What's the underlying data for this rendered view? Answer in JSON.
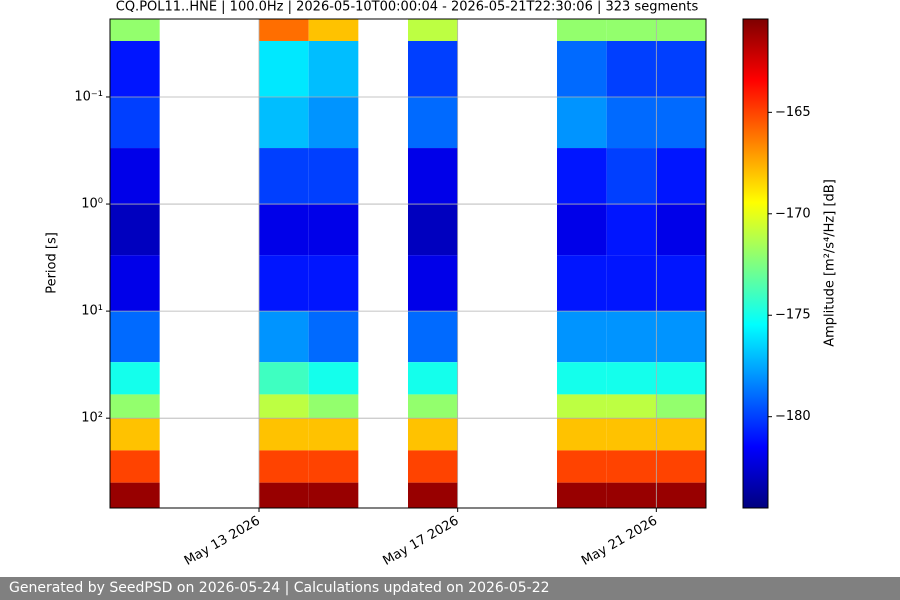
{
  "chart_data": {
    "type": "spectrogram",
    "title": "CQ.POL11..HNE | 100.0Hz | 2026-05-10T00:00:04 - 2026-05-21T22:30:06 | 323 segments",
    "y_label": "Period [s]",
    "colorbar_label": "Amplitude [m²/s⁴/Hz] [dB]",
    "x_edges": [
      "2026-05-10",
      "2026-05-11",
      "2026-05-12",
      "2026-05-13",
      "2026-05-14",
      "2026-05-15",
      "2026-05-16",
      "2026-05-17",
      "2026-05-18",
      "2026-05-19",
      "2026-05-20",
      "2026-05-21",
      "2026-05-22"
    ],
    "y_edges": [
      0.0187,
      0.03,
      0.1,
      0.3,
      1,
      3,
      10,
      30,
      60,
      100,
      200,
      400,
      690
    ],
    "z": [
      [
        -172,
        null,
        null,
        -166,
        -168,
        null,
        -171,
        null,
        null,
        -172,
        -172,
        -172
      ],
      [
        -181,
        null,
        null,
        -176,
        -177,
        null,
        -180,
        null,
        null,
        -179,
        -180,
        -180
      ],
      [
        -180,
        null,
        null,
        -177,
        -178,
        null,
        -179,
        null,
        null,
        -178,
        -179,
        -179
      ],
      [
        -182,
        null,
        null,
        -180,
        -180,
        null,
        -182,
        null,
        null,
        -181,
        -180,
        -181
      ],
      [
        -183,
        null,
        null,
        -182,
        -182,
        null,
        -183,
        null,
        null,
        -182,
        -181,
        -182
      ],
      [
        -182,
        null,
        null,
        -181,
        -181,
        null,
        -182,
        null,
        null,
        -181,
        -181,
        -181
      ],
      [
        -179,
        null,
        null,
        -178,
        -179,
        null,
        -179,
        null,
        null,
        -178,
        -178,
        -178
      ],
      [
        -175,
        null,
        null,
        -174,
        -175,
        null,
        -175,
        null,
        null,
        -175,
        -175,
        -175
      ],
      [
        -172,
        null,
        null,
        -171,
        -172,
        null,
        -172,
        null,
        null,
        -171,
        -171,
        -172
      ],
      [
        -168,
        null,
        null,
        -168,
        -168,
        null,
        -168,
        null,
        null,
        -168,
        -168,
        -168
      ],
      [
        -165,
        null,
        null,
        -165,
        -165,
        null,
        -165,
        null,
        null,
        -165,
        -165,
        -165
      ],
      [
        -161,
        null,
        null,
        -161,
        -161,
        null,
        -161,
        null,
        null,
        -161,
        -161,
        -161
      ]
    ],
    "xlim": [
      "2026-05-10",
      "2026-05-22"
    ],
    "xticks": [
      {
        "value": "2026-05-13",
        "label": "May 13 2026"
      },
      {
        "value": "2026-05-17",
        "label": "May 17 2026"
      },
      {
        "value": "2026-05-21",
        "label": "May 21 2026"
      }
    ],
    "ylim": [
      0.0187,
      690
    ],
    "y_log": true,
    "y_inverted": true,
    "yticks": [
      {
        "value": 0.1,
        "label": "10⁻¹"
      },
      {
        "value": 1,
        "label": "10⁰"
      },
      {
        "value": 10,
        "label": "10¹"
      },
      {
        "value": 100,
        "label": "10²"
      }
    ],
    "clim": [
      -184.5,
      -160.4
    ],
    "cticks": [
      {
        "value": -165,
        "label": "−165"
      },
      {
        "value": -170,
        "label": "−170"
      },
      {
        "value": -175,
        "label": "−175"
      },
      {
        "value": -180,
        "label": "−180"
      }
    ],
    "colormap": [
      "#00007f",
      "#0000ff",
      "#0080ff",
      "#00ffff",
      "#80ff80",
      "#ffff00",
      "#ff8000",
      "#ff0000",
      "#7f0000"
    ],
    "grid": true
  },
  "footer": {
    "text": "Generated by SeedPSD on 2026-05-24 | Calculations updated on 2026-05-22"
  }
}
